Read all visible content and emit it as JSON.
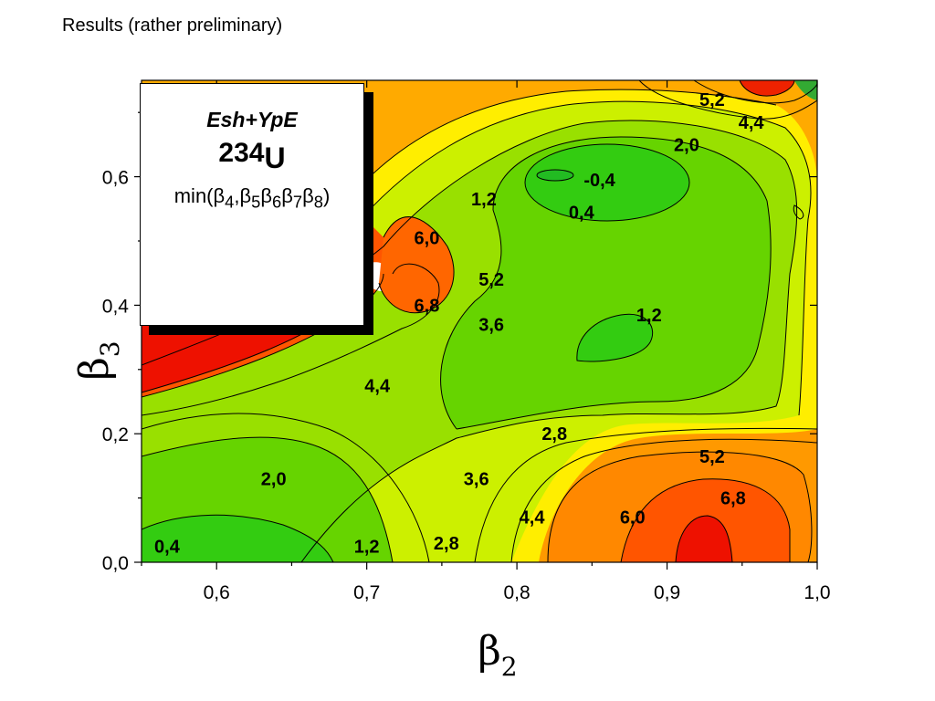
{
  "header": {
    "title": "Results (rather preliminary)"
  },
  "legend": {
    "method": "Esh+YpE",
    "mass_number": "234",
    "element": "U",
    "min_text": "min(β4,β5β6β7β8)"
  },
  "chart_data": {
    "type": "contour",
    "xlabel": "β2",
    "ylabel": "β3",
    "xlim": [
      0.55,
      1.0
    ],
    "ylim": [
      0.0,
      0.75
    ],
    "xticks": [
      "0,6",
      "0,7",
      "0,8",
      "0,9",
      "1,0"
    ],
    "xtick_values": [
      0.6,
      0.7,
      0.8,
      0.9,
      1.0
    ],
    "yticks": [
      "0,0",
      "0,2",
      "0,4",
      "0,6"
    ],
    "ytick_values": [
      0.0,
      0.2,
      0.4,
      0.6
    ],
    "colors": {
      "low": "#33dd33",
      "mid": "#ffff00",
      "high": "#ff0000"
    },
    "contour_labels": [
      {
        "text": "5,2",
        "x": 0.93,
        "y": 0.72
      },
      {
        "text": "4,4",
        "x": 0.956,
        "y": 0.685
      },
      {
        "text": "2,0",
        "x": 0.913,
        "y": 0.65
      },
      {
        "text": "-0,4",
        "x": 0.855,
        "y": 0.595
      },
      {
        "text": "1,2",
        "x": 0.778,
        "y": 0.565
      },
      {
        "text": "0,4",
        "x": 0.843,
        "y": 0.545
      },
      {
        "text": "6,0",
        "x": 0.74,
        "y": 0.505
      },
      {
        "text": "5,2",
        "x": 0.783,
        "y": 0.44
      },
      {
        "text": "6,8",
        "x": 0.74,
        "y": 0.4
      },
      {
        "text": "3,6",
        "x": 0.783,
        "y": 0.37
      },
      {
        "text": "1,2",
        "x": 0.888,
        "y": 0.385
      },
      {
        "text": "4,4",
        "x": 0.707,
        "y": 0.275
      },
      {
        "text": "2,8",
        "x": 0.825,
        "y": 0.2
      },
      {
        "text": "5,2",
        "x": 0.93,
        "y": 0.165
      },
      {
        "text": "2,0",
        "x": 0.638,
        "y": 0.13
      },
      {
        "text": "3,6",
        "x": 0.773,
        "y": 0.13
      },
      {
        "text": "6,8",
        "x": 0.944,
        "y": 0.1
      },
      {
        "text": "4,4",
        "x": 0.81,
        "y": 0.07
      },
      {
        "text": "6,0",
        "x": 0.877,
        "y": 0.07
      },
      {
        "text": "0,4",
        "x": 0.567,
        "y": 0.025
      },
      {
        "text": "1,2",
        "x": 0.7,
        "y": 0.025
      },
      {
        "text": "2,8",
        "x": 0.753,
        "y": 0.03
      }
    ]
  }
}
